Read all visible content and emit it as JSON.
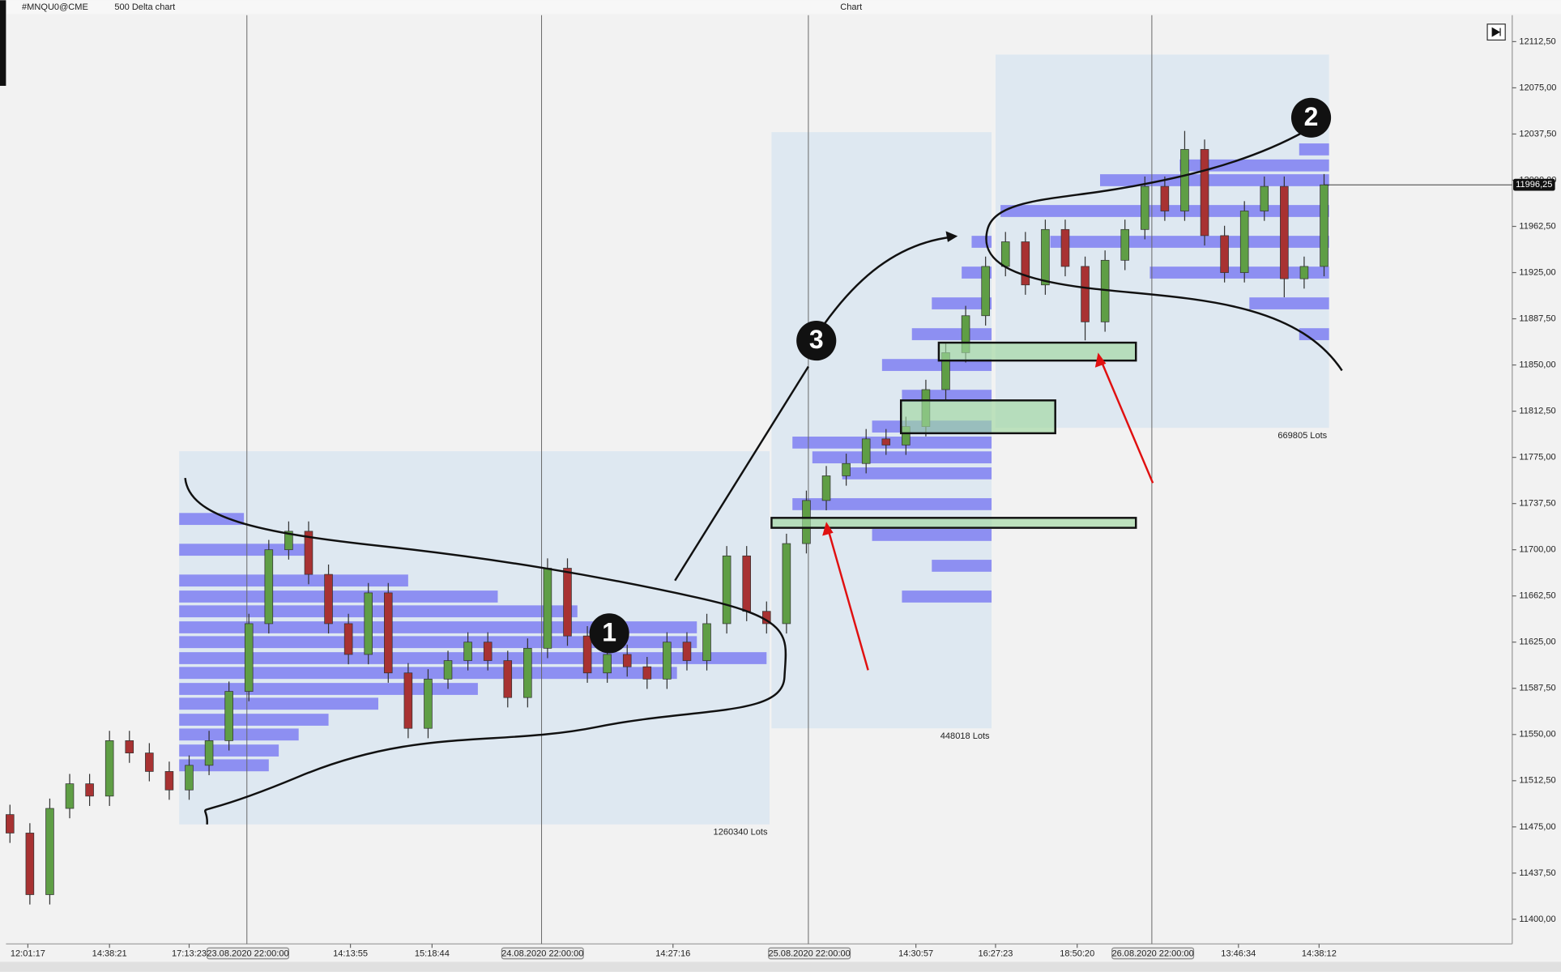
{
  "toolbar": {
    "symbol": "#MNQU0@CME",
    "chart_type": "500 Delta chart",
    "window_title": "Chart"
  },
  "chart_data": {
    "type": "candlestick",
    "up_color": "#5f9e45",
    "down_color": "#a83232",
    "profile_color": "#7f7ff2",
    "box_color": "#dbe6f1",
    "xlim": [
      -0.1,
      75.4
    ],
    "ylim": [
      11380,
      12134
    ],
    "candles": {
      "open": [
        11485,
        11470,
        11420,
        11490,
        11510,
        11500,
        11545,
        11535,
        11520,
        11505,
        11525,
        11545,
        11585,
        11640,
        11700,
        11715,
        11680,
        11640,
        11615,
        11665,
        11600,
        11555,
        11595,
        11610,
        11625,
        11610,
        11580,
        11620,
        11685,
        11630,
        11600,
        11615,
        11605,
        11595,
        11625,
        11610,
        11640,
        11695,
        11650,
        11640,
        11705,
        11740,
        11760,
        11770,
        11790,
        11785,
        11800,
        11830,
        11860,
        11890,
        11930,
        11950,
        11915,
        11960,
        11930,
        11885,
        11935,
        11960,
        11995,
        11975,
        12025,
        11955,
        11925,
        11975,
        11995,
        11920,
        11930
      ],
      "high": [
        11493,
        11478,
        11498,
        11518,
        11518,
        11553,
        11553,
        11543,
        11528,
        11533,
        11553,
        11593,
        11648,
        11708,
        11723,
        11723,
        11688,
        11648,
        11673,
        11673,
        11608,
        11603,
        11618,
        11633,
        11633,
        11618,
        11628,
        11693,
        11693,
        11638,
        11623,
        11623,
        11613,
        11633,
        11633,
        11648,
        11703,
        11703,
        11658,
        11713,
        11748,
        11768,
        11778,
        11798,
        11798,
        11808,
        11838,
        11868,
        11898,
        11938,
        11958,
        11958,
        11968,
        11968,
        11938,
        11943,
        11968,
        12003,
        12003,
        12040,
        12033,
        11963,
        11983,
        12003,
        12003,
        11938,
        12005
      ],
      "low": [
        11462,
        11412,
        11412,
        11482,
        11492,
        11492,
        11527,
        11512,
        11497,
        11497,
        11517,
        11537,
        11577,
        11632,
        11692,
        11672,
        11632,
        11607,
        11607,
        11592,
        11547,
        11547,
        11587,
        11602,
        11602,
        11572,
        11572,
        11612,
        11622,
        11592,
        11592,
        11597,
        11587,
        11587,
        11602,
        11602,
        11632,
        11642,
        11632,
        11632,
        11697,
        11732,
        11752,
        11762,
        11777,
        11777,
        11792,
        11822,
        11852,
        11882,
        11922,
        11907,
        11907,
        11922,
        11870,
        11877,
        11927,
        11952,
        11967,
        11967,
        11947,
        11917,
        11917,
        11967,
        11905,
        11912,
        11922
      ],
      "close": [
        11470,
        11420,
        11490,
        11510,
        11500,
        11545,
        11535,
        11520,
        11505,
        11525,
        11545,
        11585,
        11640,
        11700,
        11715,
        11680,
        11640,
        11615,
        11665,
        11600,
        11555,
        11595,
        11610,
        11625,
        11610,
        11580,
        11620,
        11685,
        11630,
        11600,
        11615,
        11605,
        11595,
        11625,
        11610,
        11640,
        11695,
        11650,
        11640,
        11705,
        11740,
        11760,
        11770,
        11790,
        11785,
        11800,
        11830,
        11860,
        11890,
        11930,
        11950,
        11915,
        11960,
        11930,
        11885,
        11935,
        11960,
        11995,
        11975,
        12025,
        11955,
        11925,
        11975,
        11995,
        11920,
        11930,
        11996.25
      ]
    },
    "yticks": [
      {
        "value": 11400,
        "label": "11400,00"
      },
      {
        "value": 11437.5,
        "label": "11437,50"
      },
      {
        "value": 11475,
        "label": "11475,00"
      },
      {
        "value": 11512.5,
        "label": "11512,50"
      },
      {
        "value": 11550,
        "label": "11550,00"
      },
      {
        "value": 11587.5,
        "label": "11587,50"
      },
      {
        "value": 11625,
        "label": "11625,00"
      },
      {
        "value": 11662.5,
        "label": "11662,50"
      },
      {
        "value": 11700,
        "label": "11700,00"
      },
      {
        "value": 11737.5,
        "label": "11737,50"
      },
      {
        "value": 11775,
        "label": "11775,00"
      },
      {
        "value": 11812.5,
        "label": "11812,50"
      },
      {
        "value": 11850,
        "label": "11850,00"
      },
      {
        "value": 11887.5,
        "label": "11887,50"
      },
      {
        "value": 11925,
        "label": "11925,00"
      },
      {
        "value": 11962.5,
        "label": "11962,50"
      },
      {
        "value": 12000,
        "label": "12000,00"
      },
      {
        "value": 12037.5,
        "label": "12037,50"
      },
      {
        "value": 12075,
        "label": "12075,00"
      },
      {
        "value": 12112.5,
        "label": "12112,50"
      }
    ],
    "xticks": [
      {
        "value": 0.9,
        "label": "12:01:17"
      },
      {
        "value": 5,
        "label": "14:38:21"
      },
      {
        "value": 9,
        "label": "17:13:23"
      },
      {
        "value": 17.1,
        "label": "14:13:55"
      },
      {
        "value": 21.2,
        "label": "15:18:44"
      },
      {
        "value": 33.3,
        "label": "14:27:16"
      },
      {
        "value": 45.5,
        "label": "14:30:57"
      },
      {
        "value": 49.5,
        "label": "16:27:23"
      },
      {
        "value": 53.6,
        "label": "18:50:20"
      },
      {
        "value": 61.7,
        "label": "13:46:34"
      },
      {
        "value": 65.75,
        "label": "14:38:12"
      }
    ],
    "sessions": [
      {
        "x": 11.9,
        "label": "23.08.2020 22:00:00"
      },
      {
        "x": 26.7,
        "label": "24.08.2020 22:00:00"
      },
      {
        "x": 40.1,
        "label": "25.08.2020 22:00:00"
      },
      {
        "x": 57.35,
        "label": "26.08.2020 22:00:00"
      }
    ],
    "profiles": [
      {
        "x": [
          8.5,
          38.15
        ],
        "price": [
          11477,
          11780
        ],
        "side": "left",
        "total": 1260340,
        "total_label": "1260340 Lots",
        "levels": {
          "price": [
            11725,
            11700,
            11675,
            11662,
            11650,
            11637,
            11625,
            11612,
            11600,
            11587,
            11575,
            11562,
            11550,
            11537,
            11525
          ],
          "volume": [
            65,
            130,
            230,
            320,
            400,
            520,
            520,
            590,
            500,
            300,
            200,
            150,
            120,
            100,
            90
          ]
        }
      },
      {
        "x": [
          38.25,
          49.3
        ],
        "price": [
          11555,
          12039
        ],
        "side": "right",
        "total": 448018,
        "total_label": "448018 Lots",
        "levels": {
          "price": [
            11662,
            11687,
            11712,
            11737,
            11762,
            11775,
            11787,
            11800,
            11825,
            11850,
            11875,
            11900,
            11925,
            11950
          ],
          "volume": [
            90,
            60,
            120,
            200,
            150,
            180,
            200,
            120,
            90,
            110,
            80,
            60,
            30,
            20
          ]
        }
      },
      {
        "x": [
          49.5,
          66.25
        ],
        "price": [
          11799,
          12102
        ],
        "side": "right",
        "total": 669805,
        "total_label": "669805 Lots",
        "levels": {
          "price": [
            11875,
            11900,
            11925,
            11950,
            11975,
            12000,
            12012,
            12025
          ],
          "volume": [
            30,
            80,
            180,
            280,
            330,
            230,
            150,
            30
          ]
        }
      }
    ],
    "last_price": {
      "value": 11996.25,
      "label": "11996,25"
    },
    "annotations": [
      "1",
      "2",
      "3"
    ]
  }
}
